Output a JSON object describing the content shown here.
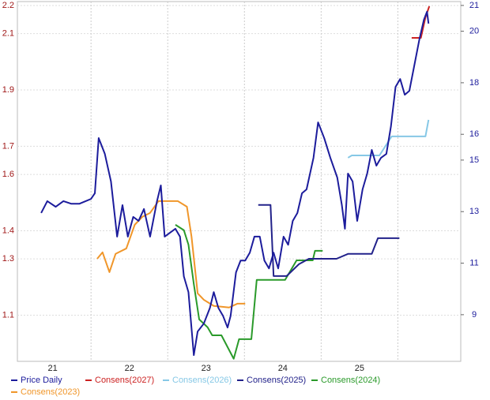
{
  "chart_data": {
    "type": "line",
    "xlim": [
      21.04,
      26.82
    ],
    "xticks": [
      22,
      23,
      24,
      25,
      26
    ],
    "year_labels": [
      "21",
      "22",
      "23",
      "24",
      "25"
    ],
    "ylim": [
      0.936,
      2.214
    ],
    "yticks": [
      1.1,
      1.3,
      1.4,
      1.6,
      1.7,
      1.9,
      2.1,
      2.2
    ],
    "y2lim": [
      7.19,
      21.15
    ],
    "y2ticks": [
      9,
      11,
      13,
      15,
      16,
      18,
      20,
      21
    ],
    "grid": true,
    "series": [
      {
        "name": "Price Daily",
        "color": "#1c1c9c",
        "axis": "y",
        "x": [
          21.35,
          21.43,
          21.54,
          21.64,
          21.74,
          21.85,
          22.0,
          22.05,
          22.1,
          22.18,
          22.26,
          22.34,
          22.41,
          22.48,
          22.55,
          22.62,
          22.69,
          22.77,
          22.86,
          22.91,
          22.96,
          23.03,
          23.1,
          23.16,
          23.21,
          23.27,
          23.34,
          23.39,
          23.47,
          23.55,
          23.6,
          23.66,
          23.72,
          23.78,
          23.82,
          23.89,
          23.95,
          24.01,
          24.07,
          24.13,
          24.2,
          24.26,
          24.32,
          24.38,
          24.44,
          24.51,
          24.57,
          24.63,
          24.69,
          24.75,
          24.81,
          24.9,
          24.96,
          25.04,
          25.12,
          25.21,
          25.27,
          25.31,
          25.35,
          25.41,
          25.47,
          25.54,
          25.6,
          25.66,
          25.72,
          25.78,
          25.85,
          25.91,
          25.97,
          26.03,
          26.09,
          26.15,
          26.22,
          26.28,
          26.34,
          26.38,
          26.4
        ],
        "values": [
          1.463,
          1.505,
          1.485,
          1.505,
          1.496,
          1.496,
          1.513,
          1.533,
          1.729,
          1.673,
          1.575,
          1.379,
          1.491,
          1.379,
          1.449,
          1.435,
          1.477,
          1.379,
          1.505,
          1.561,
          1.379,
          1.393,
          1.407,
          1.379,
          1.238,
          1.182,
          0.958,
          1.042,
          1.07,
          1.126,
          1.182,
          1.126,
          1.098,
          1.056,
          1.098,
          1.252,
          1.294,
          1.294,
          1.322,
          1.379,
          1.379,
          1.294,
          1.266,
          1.322,
          1.266,
          1.379,
          1.35,
          1.435,
          1.463,
          1.533,
          1.547,
          1.659,
          1.785,
          1.729,
          1.659,
          1.589,
          1.491,
          1.407,
          1.603,
          1.575,
          1.435,
          1.547,
          1.603,
          1.687,
          1.631,
          1.659,
          1.673,
          1.771,
          1.911,
          1.939,
          1.883,
          1.897,
          1.995,
          2.079,
          2.15,
          2.178,
          2.136
        ]
      },
      {
        "name": "Consens(2027)",
        "color": "#cc2222",
        "axis": "y2",
        "x": [
          26.18,
          26.3,
          26.36,
          26.41
        ],
        "values": [
          19.74,
          19.74,
          20.54,
          20.97
        ]
      },
      {
        "name": "Consens(2026)",
        "color": "#86c8e6",
        "axis": "y2",
        "x": [
          25.35,
          25.4,
          25.76,
          25.92,
          26.36,
          26.4
        ],
        "values": [
          15.09,
          15.18,
          15.18,
          15.92,
          15.92,
          16.56
        ]
      },
      {
        "name": "Consens(2025)",
        "color": "#22228a",
        "axis": "y2",
        "x": [
          24.18,
          24.34,
          24.38,
          24.55,
          24.71,
          24.84,
          25.2,
          25.35,
          25.66,
          25.74,
          26.02
        ],
        "values": [
          13.26,
          13.26,
          10.5,
          10.5,
          10.96,
          11.17,
          11.17,
          11.36,
          11.36,
          11.97,
          11.97
        ]
      },
      {
        "name": "Consens(2024)",
        "color": "#2a9a2a",
        "axis": "y2",
        "x": [
          23.1,
          23.21,
          23.27,
          23.34,
          23.41,
          23.52,
          23.58,
          23.7,
          23.86,
          23.93,
          24.09,
          24.16,
          24.53,
          24.68,
          24.89,
          24.92,
          25.02
        ],
        "values": [
          12.49,
          12.28,
          11.72,
          10.19,
          8.82,
          8.51,
          8.2,
          8.2,
          7.29,
          8.05,
          8.05,
          10.35,
          10.35,
          11.11,
          11.11,
          11.48,
          11.48
        ]
      },
      {
        "name": "Consens(2023)",
        "color": "#f0962a",
        "axis": "y2",
        "x": [
          22.08,
          22.15,
          22.24,
          22.32,
          22.46,
          22.57,
          22.67,
          22.77,
          22.88,
          22.98,
          23.13,
          23.25,
          23.31,
          23.39,
          23.47,
          23.6,
          23.8,
          23.91,
          24.01
        ],
        "values": [
          11.17,
          11.42,
          10.65,
          11.36,
          11.57,
          12.49,
          12.8,
          12.95,
          13.41,
          13.41,
          13.41,
          13.19,
          12.03,
          9.83,
          9.58,
          9.34,
          9.28,
          9.43,
          9.43
        ]
      }
    ]
  }
}
